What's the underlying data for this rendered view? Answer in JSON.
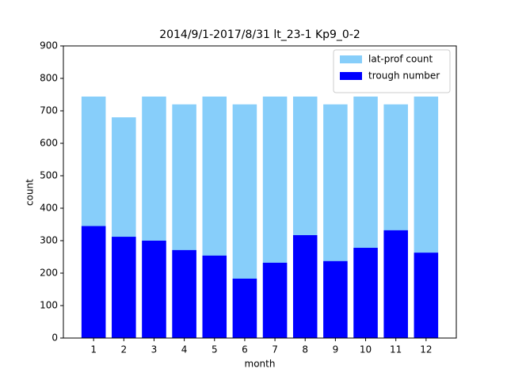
{
  "chart_data": {
    "type": "bar",
    "title": "2014/9/1-2017/8/31  lt_23-1  Kp9_0-2",
    "x_label": "month",
    "y_label": "count",
    "x": [
      1,
      2,
      3,
      4,
      5,
      6,
      7,
      8,
      9,
      10,
      11,
      12
    ],
    "series": [
      {
        "name": "lat-prof count",
        "color": "#87cefa",
        "values": [
          744,
          680,
          744,
          720,
          744,
          720,
          744,
          744,
          720,
          744,
          720,
          744
        ]
      },
      {
        "name": "trough number",
        "color": "#0000ff",
        "values": [
          345,
          312,
          300,
          271,
          254,
          183,
          232,
          317,
          237,
          278,
          332,
          263
        ]
      }
    ],
    "xlim": [
      0,
      13
    ],
    "xticks": [
      1,
      2,
      3,
      4,
      5,
      6,
      7,
      8,
      9,
      10,
      11,
      12
    ],
    "ylim": [
      0,
      900
    ],
    "yticks": [
      0,
      100,
      200,
      300,
      400,
      500,
      600,
      700,
      800,
      900
    ],
    "legend": "upper right"
  }
}
